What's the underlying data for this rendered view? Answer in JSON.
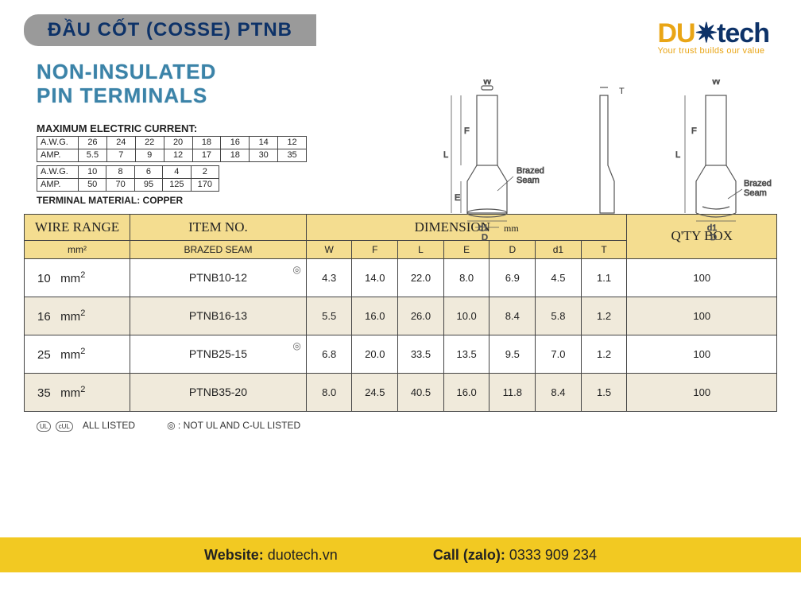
{
  "header": {
    "title": "ĐẦU CỐT (COSSE)  PTNB",
    "subtitle_line1": "NON-INSULATED",
    "subtitle_line2": "PIN TERMINALS"
  },
  "logo": {
    "part1": "DU",
    "gear": "✷",
    "part2": "tech",
    "tagline": "Your trust builds our value"
  },
  "max_current": {
    "header": "MAXIMUM ELECTRIC CURRENT:",
    "row1_label": "A.W.G.",
    "row1": [
      "26",
      "24",
      "22",
      "20",
      "18",
      "16",
      "14",
      "12"
    ],
    "row2_label": "AMP.",
    "row2": [
      "5.5",
      "7",
      "9",
      "12",
      "17",
      "18",
      "30",
      "35"
    ],
    "row3_label": "A.W.G.",
    "row3": [
      "10",
      "8",
      "6",
      "4",
      "2"
    ],
    "row4_label": "AMP.",
    "row4": [
      "50",
      "70",
      "95",
      "125",
      "170"
    ]
  },
  "terminal_material": "TERMINAL MATERIAL: COPPER",
  "diagram_labels": {
    "W": "W",
    "F": "F",
    "L": "L",
    "E": "E",
    "D": "D",
    "d1": "d1",
    "T": "T",
    "brazed_seam": "Brazed\nSeam"
  },
  "main_table": {
    "headers": {
      "wire_range": "WIRE RANGE",
      "wire_unit": "mm²",
      "item_no": "ITEM NO.",
      "brazed_seam": "BRAZED SEAM",
      "dimension": "DIMENSION",
      "dim_unit": "mm",
      "dim_cols": [
        "W",
        "F",
        "L",
        "E",
        "D",
        "d1",
        "T"
      ],
      "qty_box": "Q'TY BOX"
    },
    "rows": [
      {
        "wire": "10",
        "unit": "mm²",
        "item": "PTNB10-12",
        "mark": "◎",
        "dims": [
          "4.3",
          "14.0",
          "22.0",
          "8.0",
          "6.9",
          "4.5",
          "1.1"
        ],
        "qty": "100",
        "alt": false
      },
      {
        "wire": "16",
        "unit": "mm²",
        "item": "PTNB16-13",
        "mark": "",
        "dims": [
          "5.5",
          "16.0",
          "26.0",
          "10.0",
          "8.4",
          "5.8",
          "1.2"
        ],
        "qty": "100",
        "alt": true
      },
      {
        "wire": "25",
        "unit": "mm²",
        "item": "PTNB25-15",
        "mark": "◎",
        "dims": [
          "6.8",
          "20.0",
          "33.5",
          "13.5",
          "9.5",
          "7.0",
          "1.2"
        ],
        "qty": "100",
        "alt": false
      },
      {
        "wire": "35",
        "unit": "mm²",
        "item": "PTNB35-20",
        "mark": "",
        "dims": [
          "8.0",
          "24.5",
          "40.5",
          "16.0",
          "11.8",
          "8.4",
          "1.5"
        ],
        "qty": "100",
        "alt": true
      }
    ]
  },
  "listed_note": {
    "all_listed": "ALL LISTED",
    "not_listed": "◎ : NOT UL  AND  C-UL  LISTED"
  },
  "footer": {
    "website_label": "Website:",
    "website_value": "duotech.vn",
    "call_label": "Call (zalo):",
    "call_value": "0333 909 234"
  },
  "colors": {
    "title_bar_bg": "#9a9a9a",
    "title_text": "#0d3268",
    "subtitle": "#3b83a8",
    "table_header_bg": "#f4dd90",
    "alt_row_bg": "#f0eadb",
    "footer_bg": "#f2c922",
    "logo_accent": "#e9a515",
    "logo_dark": "#0d3268"
  }
}
